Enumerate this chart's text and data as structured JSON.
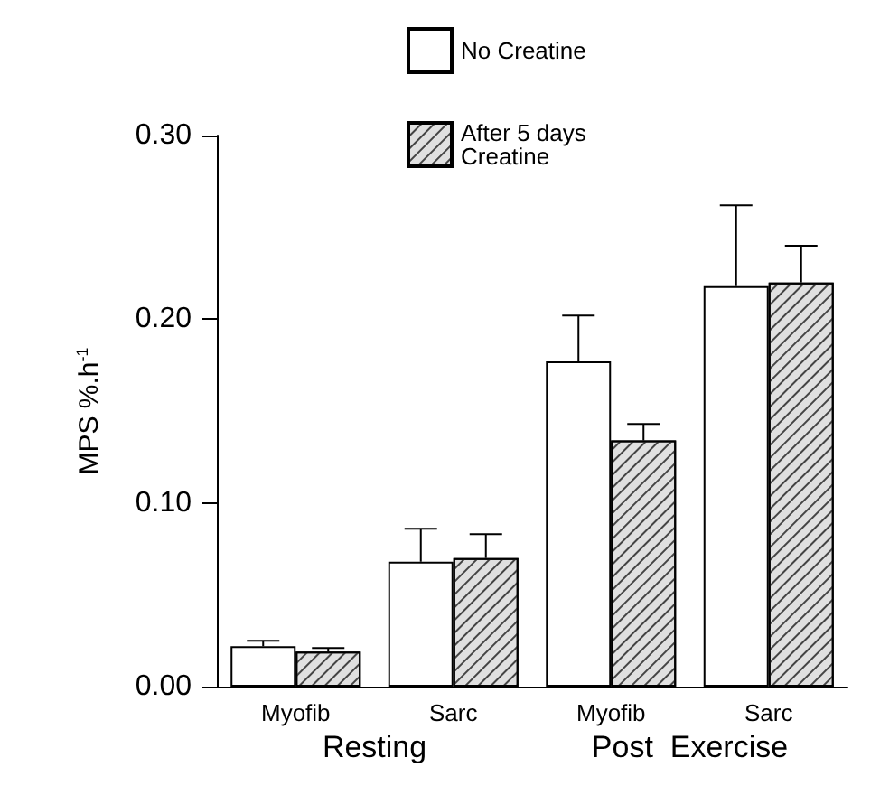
{
  "chart_data": {
    "type": "bar",
    "ylabel": "MPS %.h$^{-1}$",
    "categories": [
      "Myofib",
      "Sarc",
      "Myofib",
      "Sarc"
    ],
    "series": [
      {
        "name": "No Creatine",
        "color": "#ffffff",
        "values": [
          0.022,
          0.068,
          0.177,
          0.218
        ],
        "errors": [
          [
            0.022,
            0.025
          ],
          [
            0.068,
            0.086
          ],
          [
            0.177,
            0.202
          ],
          [
            0.218,
            0.262
          ]
        ]
      },
      {
        "name": "After 5 days Creatine",
        "color": "#e0e0e0",
        "values": [
          0.019,
          0.07,
          0.134,
          0.22
        ],
        "errors": [
          [
            0.019,
            0.021
          ],
          [
            0.07,
            0.083
          ],
          [
            0.134,
            0.143
          ],
          [
            0.22,
            0.24
          ]
        ]
      }
    ],
    "annotations": [
      "Resting",
      "Post  Exercise"
    ],
    "ylim": [
      0,
      0.3
    ],
    "yticks": [
      {
        "value": 0,
        "label": "0.00"
      },
      {
        "value": 0.1,
        "label": "0.10"
      },
      {
        "value": 0.2,
        "label": "0.20"
      },
      {
        "value": 0.3,
        "label": "0.30"
      }
    ],
    "grid": false,
    "legend": "top"
  }
}
